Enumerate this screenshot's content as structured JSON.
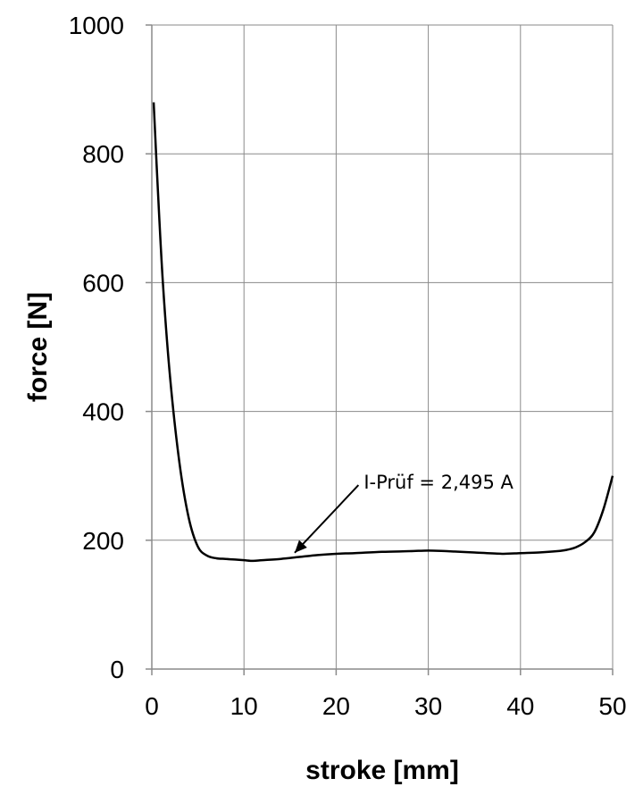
{
  "chart_data": {
    "type": "line",
    "xlabel": "stroke [mm]",
    "ylabel": "force [N]",
    "xlim": [
      0,
      50
    ],
    "ylim": [
      0,
      1000
    ],
    "x_ticks": [
      0,
      10,
      20,
      30,
      40,
      50
    ],
    "y_ticks": [
      0,
      200,
      400,
      600,
      800,
      1000
    ],
    "grid": true,
    "series": [
      {
        "x": [
          0.2,
          0.6,
          1.2,
          2,
          3,
          4,
          5,
          6,
          7,
          8,
          9,
          10,
          11,
          12,
          14,
          16,
          18,
          20,
          22,
          25,
          28,
          30,
          32,
          35,
          38,
          40,
          42,
          44,
          45,
          46,
          47,
          48,
          49,
          50
        ],
        "y": [
          880,
          760,
          600,
          450,
          320,
          235,
          190,
          176,
          172,
          171,
          170,
          169,
          168,
          169,
          171,
          174,
          177,
          179,
          180,
          182,
          183,
          184,
          183,
          181,
          179,
          180,
          181,
          183,
          185,
          189,
          197,
          212,
          248,
          300
        ]
      }
    ],
    "annotations": [
      {
        "text": "I-Prüf = 2,495 A",
        "arrow_to": [
          15.5,
          175
        ],
        "text_at": [
          23,
          280
        ]
      }
    ]
  }
}
